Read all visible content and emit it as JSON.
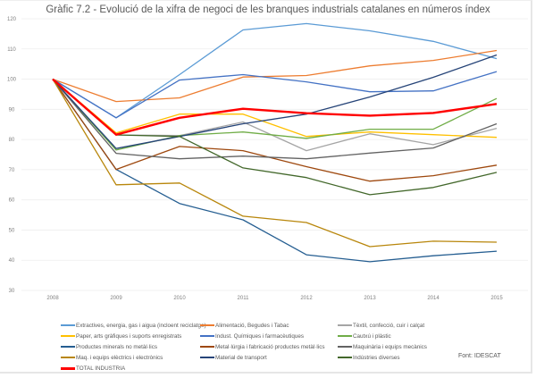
{
  "chart_data": {
    "type": "line",
    "title": "Gràfic 7.2  - Evolució de la xifra de negoci de les branques industrials catalanes en números índex",
    "xlabel": "",
    "ylabel": "",
    "x": [
      "2008",
      "2009",
      "2010",
      "2011",
      "2012",
      "2013",
      "2014",
      "2015"
    ],
    "ylim": [
      30,
      120
    ],
    "yticks": [
      30,
      40,
      50,
      60,
      70,
      80,
      90,
      100,
      110,
      120
    ],
    "grid": true,
    "legend_position": "bottom",
    "source": "Font: IDESCAT",
    "series": [
      {
        "name": "Extractives, energia, gas i aigua (incloent reciclatge)",
        "color": "#5b9bd5",
        "values": [
          100,
          87.2,
          101.5,
          116.3,
          118.4,
          116.0,
          112.5,
          106.8
        ]
      },
      {
        "name": "Alimentació, Begudes i Tabac",
        "color": "#ed7d31",
        "values": [
          100,
          92.6,
          93.8,
          100.7,
          101.2,
          104.4,
          106.2,
          109.5
        ]
      },
      {
        "name": "Tèxtil, confecció, cuir i calçat",
        "color": "#a5a5a5",
        "values": [
          100,
          81.5,
          81.3,
          85.8,
          76.3,
          81.9,
          78.3,
          83.7
        ]
      },
      {
        "name": "Paper, arts gràfiques i suports enregistrats",
        "color": "#ffc000",
        "values": [
          100,
          82.2,
          88.4,
          88.4,
          81.0,
          82.5,
          81.6,
          80.7
        ]
      },
      {
        "name": "Indust. Químiques i farmacèutiques",
        "color": "#4472c4",
        "values": [
          100,
          87.2,
          99.7,
          101.5,
          99.1,
          95.8,
          96.1,
          102.5
        ]
      },
      {
        "name": "Cautxú i plàstic",
        "color": "#70ad47",
        "values": [
          100,
          76.5,
          81.3,
          82.5,
          80.4,
          83.4,
          83.4,
          93.6
        ]
      },
      {
        "name": "Productes minerals no metàl·lics",
        "color": "#255e91",
        "values": [
          100,
          70.1,
          58.8,
          53.4,
          41.8,
          39.5,
          41.5,
          43.0
        ]
      },
      {
        "name": "Metal·lúrgia i fabricació productes metàl·lics",
        "color": "#9e480e",
        "values": [
          100,
          70.1,
          77.7,
          76.3,
          71.0,
          66.2,
          68.0,
          71.5
        ]
      },
      {
        "name": "Maquinària i equips mecànics",
        "color": "#636363",
        "values": [
          100,
          75.4,
          73.6,
          74.5,
          73.6,
          75.5,
          77.2,
          85.2
        ]
      },
      {
        "name": "Maq. i equips elèctrics i electrònics",
        "color": "#b8860b",
        "values": [
          100,
          65.0,
          65.6,
          54.6,
          52.5,
          44.5,
          46.3,
          46.0
        ]
      },
      {
        "name": "Material de transport",
        "color": "#264478",
        "values": [
          100,
          77.0,
          81.0,
          85.2,
          88.4,
          94.1,
          100.6,
          108.0
        ]
      },
      {
        "name": "Indústries diverses",
        "color": "#43682b",
        "values": [
          100,
          81.5,
          81.0,
          70.6,
          67.4,
          61.7,
          64.1,
          69.1
        ]
      },
      {
        "name": "TOTAL INDUSTRIA",
        "color": "#ff0000",
        "values": [
          100,
          81.6,
          87.2,
          90.2,
          88.7,
          87.9,
          88.8,
          91.8
        ],
        "bold": true
      }
    ]
  }
}
